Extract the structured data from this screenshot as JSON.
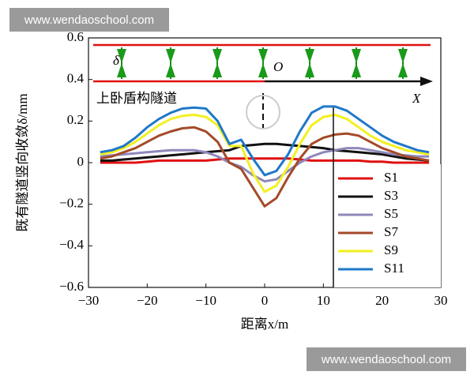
{
  "chart_data": {
    "type": "line",
    "y_label": "既有隧道竖向收敛δ/mm",
    "x_label": "距离x/m",
    "x": [
      -28,
      -26,
      -24,
      -22,
      -20,
      -18,
      -16,
      -14,
      -12,
      -10,
      -8,
      -6,
      -4,
      -2,
      0,
      2,
      4,
      6,
      8,
      10,
      12,
      14,
      16,
      18,
      20,
      22,
      24,
      26,
      28
    ],
    "series": [
      {
        "name": "S1",
        "color": "#e01010",
        "values": [
          0,
          0,
          0,
          0,
          0.005,
          0.01,
          0.01,
          0.01,
          0.01,
          0.01,
          0.015,
          0.02,
          0.02,
          0.02,
          0.02,
          0.02,
          0.02,
          0.015,
          0.01,
          0.01,
          0.01,
          0.01,
          0.01,
          0.005,
          0.005,
          0,
          0,
          0,
          0
        ]
      },
      {
        "name": "S3",
        "color": "#111111",
        "values": [
          0.01,
          0.01,
          0.015,
          0.02,
          0.025,
          0.03,
          0.035,
          0.04,
          0.045,
          0.05,
          0.055,
          0.06,
          0.08,
          0.085,
          0.09,
          0.09,
          0.085,
          0.08,
          0.075,
          0.07,
          0.06,
          0.055,
          0.05,
          0.045,
          0.04,
          0.03,
          0.02,
          0.015,
          0.01
        ]
      },
      {
        "name": "S5",
        "color": "#8e88bb",
        "values": [
          0.03,
          0.035,
          0.04,
          0.045,
          0.05,
          0.055,
          0.06,
          0.06,
          0.06,
          0.05,
          0.03,
          0,
          -0.02,
          -0.06,
          -0.09,
          -0.08,
          -0.04,
          0,
          0.03,
          0.05,
          0.06,
          0.07,
          0.07,
          0.06,
          0.05,
          0.04,
          0.035,
          0.03,
          0.03
        ]
      },
      {
        "name": "S7",
        "color": "#a44a28",
        "values": [
          0.02,
          0.03,
          0.05,
          0.07,
          0.1,
          0.13,
          0.15,
          0.165,
          0.17,
          0.15,
          0.1,
          0,
          -0.03,
          -0.12,
          -0.21,
          -0.17,
          -0.07,
          0.02,
          0.09,
          0.12,
          0.135,
          0.14,
          0.13,
          0.1,
          0.07,
          0.05,
          0.03,
          0.02,
          0.01
        ]
      },
      {
        "name": "S9",
        "color": "#f2f020",
        "values": [
          0.04,
          0.05,
          0.07,
          0.1,
          0.14,
          0.18,
          0.21,
          0.225,
          0.23,
          0.22,
          0.18,
          0.08,
          0.08,
          -0.05,
          -0.14,
          -0.11,
          -0.02,
          0.09,
          0.18,
          0.22,
          0.23,
          0.21,
          0.17,
          0.13,
          0.1,
          0.08,
          0.06,
          0.05,
          0.04
        ]
      },
      {
        "name": "S11",
        "color": "#1f78c8",
        "values": [
          0.05,
          0.06,
          0.08,
          0.12,
          0.17,
          0.21,
          0.24,
          0.26,
          0.265,
          0.26,
          0.2,
          0.09,
          0.11,
          0.02,
          -0.06,
          -0.04,
          0.04,
          0.15,
          0.24,
          0.27,
          0.27,
          0.25,
          0.21,
          0.17,
          0.13,
          0.1,
          0.08,
          0.06,
          0.05
        ]
      }
    ],
    "xlim": [
      -30,
      30
    ],
    "xticks": [
      {
        "value": -30,
        "label": "−30"
      },
      {
        "value": -20,
        "label": "−20"
      },
      {
        "value": -10,
        "label": "−10"
      },
      0,
      10,
      20,
      30
    ],
    "ylim": [
      -0.6,
      0.6
    ],
    "yticks": [
      {
        "value": -0.6,
        "label": "−0.6"
      },
      {
        "value": -0.4,
        "label": "−0.4"
      },
      {
        "value": -0.2,
        "label": "−0.2"
      },
      0,
      0.2,
      0.4,
      0.6
    ],
    "legend": "lower right",
    "schematic": {
      "label": "上卧盾构隧道",
      "delta": "δ",
      "origin": "O",
      "axis": "X"
    }
  },
  "watermarks": [
    "www.wendaoschool.com",
    "www.wendaoschool.com"
  ]
}
